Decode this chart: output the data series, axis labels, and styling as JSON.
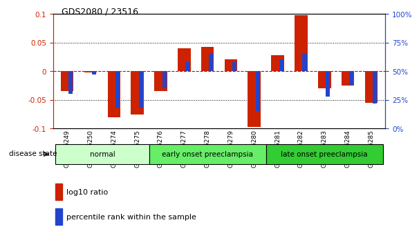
{
  "title": "GDS2080 / 23516",
  "samples": [
    "GSM106249",
    "GSM106250",
    "GSM106274",
    "GSM106275",
    "GSM106276",
    "GSM106277",
    "GSM106278",
    "GSM106279",
    "GSM106280",
    "GSM106281",
    "GSM106282",
    "GSM106283",
    "GSM106284",
    "GSM106285"
  ],
  "log10_ratio": [
    -0.035,
    -0.002,
    -0.08,
    -0.075,
    -0.035,
    0.04,
    0.042,
    0.02,
    -0.097,
    0.028,
    0.097,
    -0.03,
    -0.025,
    -0.055
  ],
  "percentile_rank": [
    30,
    47,
    18,
    18,
    35,
    58,
    65,
    58,
    15,
    60,
    65,
    28,
    38,
    22
  ],
  "groups": [
    {
      "label": "normal",
      "start": 0,
      "end": 4,
      "color": "#ccffcc"
    },
    {
      "label": "early onset preeclampsia",
      "start": 4,
      "end": 9,
      "color": "#66ee66"
    },
    {
      "label": "late onset preeclampsia",
      "start": 9,
      "end": 14,
      "color": "#33cc33"
    }
  ],
  "ylim": [
    -0.1,
    0.1
  ],
  "yticks_left": [
    -0.1,
    -0.05,
    0,
    0.05,
    0.1
  ],
  "yticks_right": [
    0,
    25,
    50,
    75,
    100
  ],
  "red_color": "#cc2200",
  "blue_color": "#2244cc",
  "zero_line_color": "#cc0000",
  "bg_color": "#ffffff",
  "disease_state_label": "disease state",
  "legend_red": "log10 ratio",
  "legend_blue": "percentile rank within the sample"
}
